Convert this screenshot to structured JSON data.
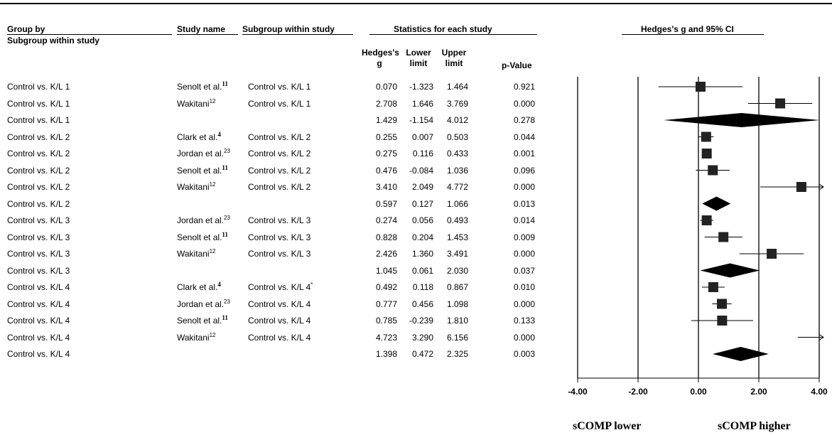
{
  "headers": {
    "group_by": "Group by",
    "group_by_sub": "Subgroup within study",
    "study_name": "Study name",
    "subgroup": "Subgroup within study",
    "stats": "Statistics for each study",
    "forest": "Hedges's g and 95% CI",
    "hedges_1": "Hedges's",
    "hedges_2": "g",
    "lower_1": "Lower",
    "lower_2": "limit",
    "upper_1": "Upper",
    "upper_2": "limit",
    "pvalue": "p-Value"
  },
  "footer": {
    "left": "sCOMP lower",
    "right": "sCOMP higher"
  },
  "chart_data": {
    "type": "forest",
    "xlim": [
      -4,
      4
    ],
    "ticks": [
      "-4.00",
      "-2.00",
      "0.00",
      "2.00",
      "4.00"
    ],
    "tick_values": [
      -4,
      -2,
      0,
      2,
      4
    ],
    "rows": [
      {
        "group": "Control vs. K/L 1",
        "study": "Senolt et al.",
        "ref": "11",
        "ref_bold": true,
        "subgroup": "Control vs. K/L 1",
        "g": "0.070",
        "lower": "-1.323",
        "upper": "1.464",
        "p": "0.921",
        "kind": "study",
        "gv": 0.07,
        "lv": -1.323,
        "uv": 1.464
      },
      {
        "group": "Control vs. K/L 1",
        "study": "Wakitani",
        "ref": "12",
        "ref_bold": false,
        "subgroup": "Control vs. K/L 1",
        "g": "2.708",
        "lower": "1.646",
        "upper": "3.769",
        "p": "0.000",
        "kind": "study",
        "gv": 2.708,
        "lv": 1.646,
        "uv": 3.769
      },
      {
        "group": "Control vs. K/L 1",
        "study": "",
        "ref": "",
        "ref_bold": false,
        "subgroup": "",
        "g": "1.429",
        "lower": "-1.154",
        "upper": "4.012",
        "p": "0.278",
        "kind": "summary",
        "gv": 1.429,
        "lv": -1.154,
        "uv": 4.012
      },
      {
        "group": "Control vs. K/L 2",
        "study": "Clark et al.",
        "ref": "4",
        "ref_bold": true,
        "subgroup": "Control vs. K/L 2",
        "g": "0.255",
        "lower": "0.007",
        "upper": "0.503",
        "p": "0.044",
        "kind": "study",
        "gv": 0.255,
        "lv": 0.007,
        "uv": 0.503
      },
      {
        "group": "Control vs. K/L 2",
        "study": "Jordan et al.",
        "ref": "23",
        "ref_bold": false,
        "subgroup": "Control vs. K/L 2",
        "g": "0.275",
        "lower": "0.116",
        "upper": "0.433",
        "p": "0.001",
        "kind": "study",
        "gv": 0.275,
        "lv": 0.116,
        "uv": 0.433
      },
      {
        "group": "Control vs. K/L 2",
        "study": "Senolt et al.",
        "ref": "11",
        "ref_bold": true,
        "subgroup": "Control vs. K/L 2",
        "g": "0.476",
        "lower": "-0.084",
        "upper": "1.036",
        "p": "0.096",
        "kind": "study",
        "gv": 0.476,
        "lv": -0.084,
        "uv": 1.036
      },
      {
        "group": "Control vs. K/L 2",
        "study": "Wakitani",
        "ref": "12",
        "ref_bold": false,
        "subgroup": "Control vs. K/L 2",
        "g": "3.410",
        "lower": "2.049",
        "upper": "4.772",
        "p": "0.000",
        "kind": "study",
        "gv": 3.41,
        "lv": 2.049,
        "uv": 4.772
      },
      {
        "group": "Control vs. K/L 2",
        "study": "",
        "ref": "",
        "ref_bold": false,
        "subgroup": "",
        "g": "0.597",
        "lower": "0.127",
        "upper": "1.066",
        "p": "0.013",
        "kind": "summary",
        "gv": 0.597,
        "lv": 0.127,
        "uv": 1.066
      },
      {
        "group": "Control vs. K/L 3",
        "study": "Jordan et al.",
        "ref": "23",
        "ref_bold": false,
        "subgroup": "Control vs. K/L 3",
        "g": "0.274",
        "lower": "0.056",
        "upper": "0.493",
        "p": "0.014",
        "kind": "study",
        "gv": 0.274,
        "lv": 0.056,
        "uv": 0.493
      },
      {
        "group": "Control vs. K/L 3",
        "study": "Senolt et al.",
        "ref": "11",
        "ref_bold": true,
        "subgroup": "Control vs. K/L 3",
        "g": "0.828",
        "lower": "0.204",
        "upper": "1.453",
        "p": "0.009",
        "kind": "study",
        "gv": 0.828,
        "lv": 0.204,
        "uv": 1.453
      },
      {
        "group": "Control vs. K/L 3",
        "study": "Wakitani",
        "ref": "12",
        "ref_bold": false,
        "subgroup": "Control vs. K/L 3",
        "g": "2.426",
        "lower": "1.360",
        "upper": "3.491",
        "p": "0.000",
        "kind": "study",
        "gv": 2.426,
        "lv": 1.36,
        "uv": 3.491
      },
      {
        "group": "Control vs. K/L 3",
        "study": "",
        "ref": "",
        "ref_bold": false,
        "subgroup": "",
        "g": "1.045",
        "lower": "0.061",
        "upper": "2.030",
        "p": "0.037",
        "kind": "summary",
        "gv": 1.045,
        "lv": 0.061,
        "uv": 2.03
      },
      {
        "group": "Control vs. K/L 4",
        "study": "Clark et al.",
        "ref": "4",
        "ref_bold": true,
        "subgroup": "Control vs. K/L 4",
        "subgroup_mark": "*",
        "g": "0.492",
        "lower": "0.118",
        "upper": "0.867",
        "p": "0.010",
        "kind": "study",
        "gv": 0.492,
        "lv": 0.118,
        "uv": 0.867
      },
      {
        "group": "Control vs. K/L 4",
        "study": "Jordan et al.",
        "ref": "23",
        "ref_bold": false,
        "subgroup": "Control vs. K/L 4",
        "g": "0.777",
        "lower": "0.456",
        "upper": "1.098",
        "p": "0.000",
        "kind": "study",
        "gv": 0.777,
        "lv": 0.456,
        "uv": 1.098
      },
      {
        "group": "Control vs. K/L 4",
        "study": "Senolt et al.",
        "ref": "11",
        "ref_bold": true,
        "subgroup": "Control vs. K/L 4",
        "g": "0.785",
        "lower": "-0.239",
        "upper": "1.810",
        "p": "0.133",
        "kind": "study",
        "gv": 0.785,
        "lv": -0.239,
        "uv": 1.81
      },
      {
        "group": "Control vs. K/L 4",
        "study": "Wakitani",
        "ref": "12",
        "ref_bold": false,
        "subgroup": "Control vs. K/L 4",
        "g": "4.723",
        "lower": "3.290",
        "upper": "6.156",
        "p": "0.000",
        "kind": "study",
        "gv": 4.723,
        "lv": 3.29,
        "uv": 6.156
      },
      {
        "group": "Control vs. K/L 4",
        "study": "",
        "ref": "",
        "ref_bold": false,
        "subgroup": "",
        "g": "1.398",
        "lower": "0.472",
        "upper": "2.325",
        "p": "0.003",
        "kind": "summary",
        "gv": 1.398,
        "lv": 0.472,
        "uv": 2.325
      }
    ]
  }
}
